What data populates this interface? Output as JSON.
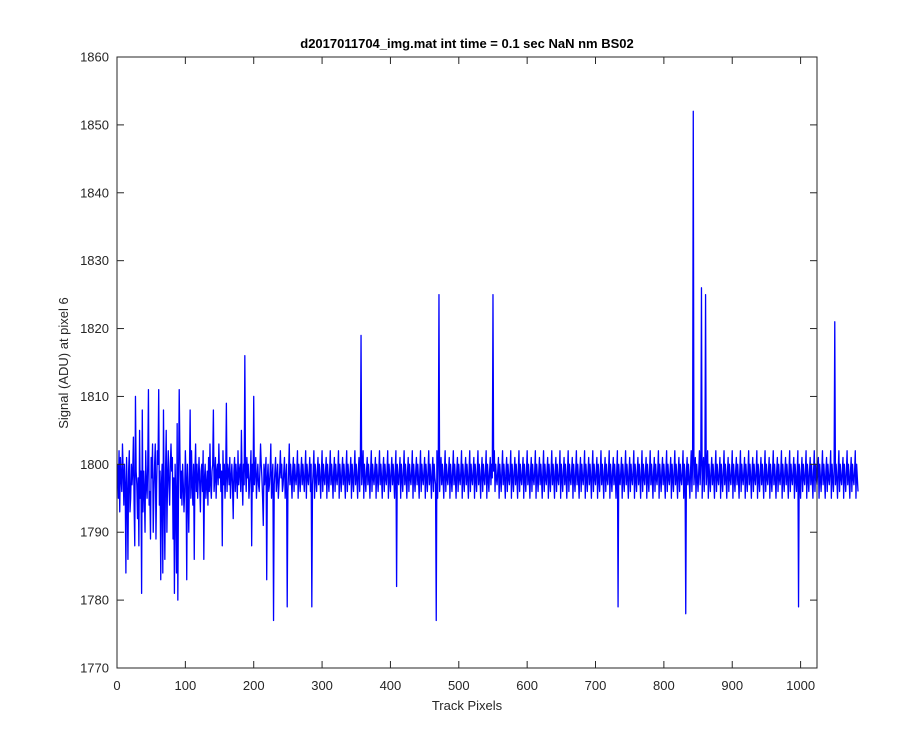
{
  "chart_data": {
    "type": "line",
    "title": "d2017011704_img.mat int time = 0.1 sec  NaN nm BS02",
    "xlabel": "Track Pixels",
    "ylabel": "Signal (ADU) at pixel 6",
    "xlim": [
      0,
      1024
    ],
    "ylim": [
      1770,
      1860
    ],
    "xticks": [
      0,
      100,
      200,
      300,
      400,
      500,
      600,
      700,
      800,
      900,
      1000
    ],
    "yticks": [
      1770,
      1780,
      1790,
      1800,
      1810,
      1820,
      1830,
      1840,
      1850,
      1860
    ],
    "grid": false,
    "series_color": "#0000ff",
    "series": [
      {
        "x_start": 1,
        "x_step": 1,
        "values": [
          1800,
          1795,
          1802,
          1793,
          1801,
          1798,
          1796,
          1803,
          1799,
          1794,
          1800,
          1797,
          1784,
          1801,
          1796,
          1786,
          1799,
          1802,
          1793,
          1795,
          1800,
          1797,
          1799,
          1804,
          1794,
          1788,
          1810,
          1799,
          1797,
          1792,
          1798,
          1788,
          1805,
          1795,
          1799,
          1781,
          1808,
          1793,
          1799,
          1796,
          1790,
          1802,
          1797,
          1795,
          1800,
          1811,
          1794,
          1796,
          1789,
          1801,
          1798,
          1803,
          1790,
          1796,
          1800,
          1803,
          1789,
          1797,
          1802,
          1800,
          1811,
          1794,
          1799,
          1783,
          1797,
          1800,
          1784,
          1808,
          1795,
          1786,
          1799,
          1805,
          1790,
          1798,
          1802,
          1797,
          1794,
          1800,
          1803,
          1799,
          1801,
          1789,
          1798,
          1781,
          1800,
          1795,
          1784,
          1806,
          1780,
          1797,
          1811,
          1802,
          1795,
          1799,
          1794,
          1800,
          1797,
          1793,
          1796,
          1802,
          1798,
          1783,
          1800,
          1796,
          1790,
          1799,
          1808,
          1795,
          1802,
          1797,
          1794,
          1800,
          1786,
          1799,
          1803,
          1796,
          1800,
          1795,
          1798,
          1801,
          1797,
          1793,
          1799,
          1800,
          1796,
          1802,
          1786,
          1798,
          1800,
          1795,
          1797,
          1799,
          1794,
          1801,
          1796,
          1803,
          1797,
          1795,
          1799,
          1800,
          1808,
          1796,
          1798,
          1801,
          1795,
          1799,
          1800,
          1797,
          1803,
          1798,
          1800,
          1796,
          1799,
          1788,
          1802,
          1797,
          1800,
          1795,
          1798,
          1809,
          1796,
          1800,
          1799,
          1797,
          1801,
          1795,
          1798,
          1800,
          1797,
          1792,
          1799,
          1801,
          1796,
          1800,
          1798,
          1795,
          1802,
          1797,
          1799,
          1800,
          1796,
          1805,
          1798,
          1794,
          1800,
          1797,
          1816,
          1799,
          1796,
          1801,
          1798,
          1800,
          1795,
          1797,
          1799,
          1802,
          1788,
          1800,
          1796,
          1810,
          1797,
          1799,
          1801,
          1795,
          1798,
          1800,
          1797,
          1796,
          1799,
          1803,
          1800,
          1798,
          1795,
          1791,
          1800,
          1797,
          1799,
          1801,
          1783,
          1798,
          1800,
          1796,
          1797,
          1799,
          1803,
          1795,
          1798,
          1800,
          1777,
          1797,
          1799,
          1801,
          1796,
          1798,
          1800,
          1795,
          1797,
          1799,
          1802,
          1798,
          1800,
          1796,
          1797,
          1799,
          1801,
          1795,
          1798,
          1800,
          1779,
          1796,
          1799,
          1803,
          1797,
          1800,
          1798,
          1795,
          1799,
          1801,
          1796,
          1800,
          1798,
          1797,
          1799,
          1802,
          1795,
          1800,
          1798,
          1796,
          1799,
          1801,
          1797,
          1800,
          1798,
          1796,
          1799,
          1802,
          1795,
          1800,
          1798,
          1797,
          1799,
          1801,
          1796,
          1800,
          1779,
          1797,
          1799,
          1802,
          1795,
          1800,
          1798,
          1796,
          1799,
          1801,
          1797,
          1800,
          1798,
          1795,
          1799,
          1802,
          1796,
          1800,
          1798,
          1797,
          1799,
          1801,
          1795,
          1800,
          1798,
          1796,
          1799,
          1802,
          1797,
          1800,
          1798,
          1795,
          1799,
          1801,
          1796,
          1800,
          1798,
          1797,
          1799,
          1802,
          1795,
          1800,
          1798,
          1796,
          1799,
          1801,
          1797,
          1800,
          1798,
          1795,
          1799,
          1802,
          1796,
          1800,
          1798,
          1797,
          1799,
          1801,
          1795,
          1800,
          1798,
          1796,
          1799,
          1802,
          1797,
          1800,
          1798,
          1795,
          1799,
          1801,
          1796,
          1800,
          1819,
          1797,
          1799,
          1802,
          1795,
          1800,
          1798,
          1796,
          1799,
          1801,
          1797,
          1800,
          1798,
          1795,
          1799,
          1802,
          1796,
          1800,
          1798,
          1797,
          1799,
          1801,
          1795,
          1800,
          1798,
          1796,
          1799,
          1802,
          1797,
          1800,
          1798,
          1795,
          1799,
          1801,
          1796,
          1800,
          1798,
          1797,
          1799,
          1802,
          1795,
          1800,
          1798,
          1796,
          1799,
          1801,
          1797,
          1800,
          1798,
          1795,
          1799,
          1802,
          1782,
          1800,
          1798,
          1797,
          1799,
          1801,
          1795,
          1800,
          1798,
          1796,
          1799,
          1802,
          1797,
          1800,
          1798,
          1795,
          1799,
          1801,
          1796,
          1800,
          1798,
          1797,
          1799,
          1802,
          1795,
          1800,
          1798,
          1796,
          1799,
          1801,
          1797,
          1800,
          1798,
          1795,
          1799,
          1802,
          1796,
          1800,
          1798,
          1797,
          1799,
          1801,
          1795,
          1800,
          1798,
          1796,
          1799,
          1802,
          1797,
          1800,
          1798,
          1795,
          1799,
          1801,
          1796,
          1800,
          1798,
          1797,
          1777,
          1802,
          1795,
          1800,
          1825,
          1796,
          1799,
          1801,
          1797,
          1800,
          1798,
          1795,
          1799,
          1802,
          1796,
          1800,
          1798,
          1797,
          1799,
          1801,
          1795,
          1800,
          1798,
          1796,
          1799,
          1802,
          1797,
          1800,
          1798,
          1795,
          1799,
          1801,
          1796,
          1800,
          1798,
          1797,
          1799,
          1802,
          1795,
          1800,
          1798,
          1796,
          1799,
          1801,
          1797,
          1800,
          1798,
          1795,
          1799,
          1802,
          1796,
          1800,
          1798,
          1797,
          1799,
          1801,
          1795,
          1800,
          1798,
          1796,
          1799,
          1802,
          1797,
          1800,
          1798,
          1795,
          1799,
          1801,
          1796,
          1800,
          1798,
          1797,
          1799,
          1802,
          1795,
          1800,
          1798,
          1796,
          1799,
          1801,
          1797,
          1800,
          1798,
          1825,
          1799,
          1802,
          1796,
          1800,
          1798,
          1797,
          1799,
          1801,
          1795,
          1800,
          1798,
          1796,
          1799,
          1802,
          1797,
          1800,
          1798,
          1795,
          1799,
          1801,
          1796,
          1800,
          1798,
          1797,
          1799,
          1802,
          1795,
          1800,
          1798,
          1796,
          1799,
          1801,
          1797,
          1800,
          1798,
          1795,
          1799,
          1802,
          1796,
          1800,
          1798,
          1797,
          1799,
          1801,
          1795,
          1800,
          1798,
          1796,
          1799,
          1802,
          1797,
          1800,
          1798,
          1795,
          1799,
          1801,
          1796,
          1800,
          1798,
          1797,
          1799,
          1802,
          1795,
          1800,
          1798,
          1796,
          1799,
          1801,
          1797,
          1800,
          1798,
          1795,
          1799,
          1802,
          1796,
          1800,
          1798,
          1797,
          1799,
          1801,
          1795,
          1800,
          1798,
          1796,
          1799,
          1802,
          1797,
          1800,
          1798,
          1795,
          1799,
          1801,
          1796,
          1800,
          1798,
          1797,
          1799,
          1802,
          1795,
          1800,
          1798,
          1796,
          1799,
          1801,
          1797,
          1800,
          1798,
          1795,
          1799,
          1802,
          1796,
          1800,
          1798,
          1797,
          1799,
          1801,
          1795,
          1800,
          1798,
          1796,
          1799,
          1802,
          1797,
          1800,
          1798,
          1795,
          1799,
          1801,
          1796,
          1800,
          1798,
          1797,
          1799,
          1802,
          1795,
          1800,
          1798,
          1796,
          1799,
          1801,
          1797,
          1800,
          1798,
          1795,
          1799,
          1802,
          1796,
          1800,
          1798,
          1797,
          1799,
          1801,
          1795,
          1800,
          1798,
          1796,
          1799,
          1802,
          1797,
          1800,
          1798,
          1795,
          1799,
          1801,
          1796,
          1800,
          1798,
          1797,
          1799,
          1802,
          1795,
          1800,
          1798,
          1796,
          1799,
          1801,
          1797,
          1800,
          1798,
          1795,
          1799,
          1802,
          1779,
          1800,
          1798,
          1797,
          1799,
          1801,
          1795,
          1800,
          1798,
          1796,
          1799,
          1802,
          1797,
          1800,
          1798,
          1795,
          1799,
          1801,
          1796,
          1800,
          1798,
          1797,
          1799,
          1802,
          1795,
          1800,
          1798,
          1796,
          1799,
          1801,
          1797,
          1800,
          1798,
          1795,
          1799,
          1802,
          1796,
          1800,
          1798,
          1797,
          1799,
          1801,
          1795,
          1800,
          1798,
          1796,
          1799,
          1802,
          1797,
          1800,
          1798,
          1795,
          1799,
          1801,
          1796,
          1800,
          1798,
          1797,
          1799,
          1802,
          1795,
          1800,
          1798,
          1796,
          1799,
          1801,
          1797,
          1800,
          1798,
          1795,
          1799,
          1802,
          1796,
          1800,
          1798,
          1797,
          1799,
          1801,
          1795,
          1800,
          1798,
          1796,
          1799,
          1802,
          1797,
          1800,
          1798,
          1795,
          1799,
          1801,
          1796,
          1800,
          1798,
          1797,
          1799,
          1802,
          1795,
          1800,
          1798,
          1778,
          1799,
          1801,
          1797,
          1800,
          1798,
          1795,
          1799,
          1802,
          1796,
          1800,
          1852,
          1797,
          1799,
          1801,
          1795,
          1800,
          1798,
          1796,
          1799,
          1802,
          1797,
          1800,
          1826,
          1795,
          1799,
          1801,
          1796,
          1800,
          1825,
          1797,
          1799,
          1802,
          1795,
          1800,
          1798,
          1796,
          1799,
          1801,
          1797,
          1800,
          1798,
          1795,
          1799,
          1802,
          1796,
          1800,
          1798,
          1797,
          1799,
          1801,
          1795,
          1800,
          1798,
          1796,
          1799,
          1802,
          1797,
          1800,
          1798,
          1795,
          1799,
          1801,
          1796,
          1800,
          1798,
          1797,
          1799,
          1802,
          1795,
          1800,
          1798,
          1796,
          1799,
          1801,
          1797,
          1800,
          1798,
          1795,
          1799,
          1802,
          1796,
          1800,
          1798,
          1797,
          1799,
          1801,
          1795,
          1800,
          1798,
          1796,
          1799,
          1802,
          1797,
          1800,
          1798,
          1795,
          1799,
          1801,
          1796,
          1800,
          1798,
          1797,
          1799,
          1802,
          1795,
          1800,
          1798,
          1796,
          1799,
          1801,
          1797,
          1800,
          1798,
          1795,
          1799,
          1802,
          1796,
          1800,
          1798,
          1797,
          1799,
          1801,
          1795,
          1800,
          1798,
          1796,
          1799,
          1802,
          1797,
          1800,
          1798,
          1795,
          1799,
          1801,
          1796,
          1800,
          1798,
          1797,
          1799,
          1802,
          1795,
          1800,
          1798,
          1796,
          1799,
          1801,
          1797,
          1800,
          1798,
          1795,
          1799,
          1802,
          1796,
          1800,
          1798,
          1797,
          1799,
          1801,
          1795,
          1800,
          1798,
          1796,
          1799,
          1802,
          1779,
          1800,
          1798,
          1795,
          1799,
          1801,
          1796,
          1800,
          1798,
          1797,
          1799,
          1802,
          1795,
          1800,
          1798,
          1796,
          1799,
          1801,
          1797,
          1800,
          1798,
          1795,
          1799,
          1802,
          1796,
          1800,
          1798,
          1797,
          1799,
          1801,
          1795,
          1800,
          1798,
          1796,
          1799,
          1802,
          1797,
          1800,
          1798,
          1795,
          1799,
          1801,
          1796,
          1800,
          1798,
          1797,
          1799,
          1802,
          1795,
          1800,
          1798,
          1796,
          1799,
          1821,
          1797,
          1800,
          1798,
          1795,
          1799,
          1802,
          1796,
          1800,
          1798,
          1797,
          1799,
          1801,
          1795,
          1800,
          1798,
          1796,
          1799,
          1802,
          1797,
          1800,
          1798,
          1795,
          1799,
          1801,
          1796,
          1800,
          1798,
          1797,
          1799,
          1802,
          1795,
          1800,
          1798,
          1796
        ]
      }
    ]
  }
}
